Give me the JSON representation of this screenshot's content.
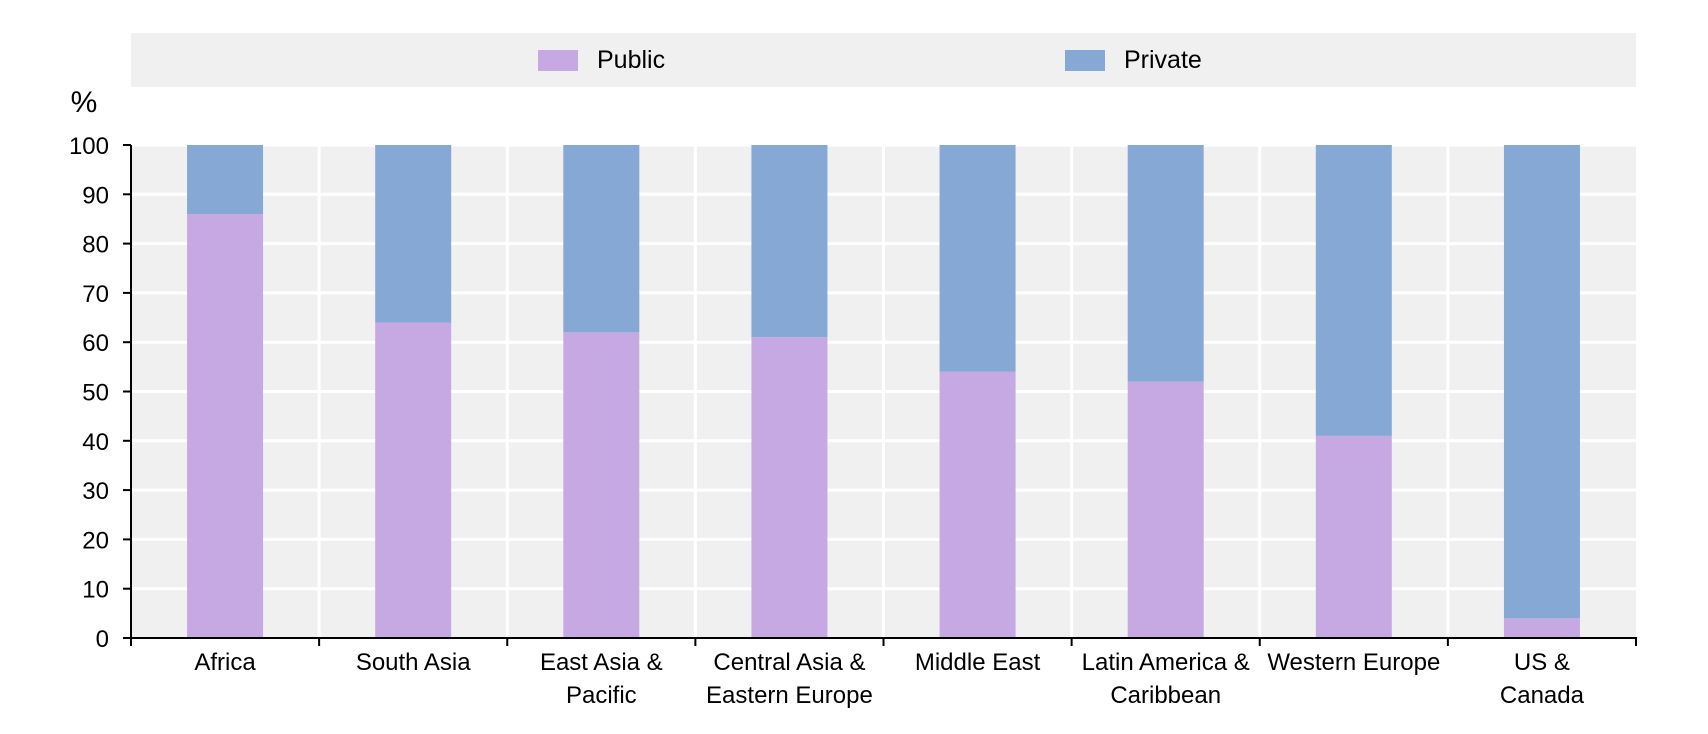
{
  "chart_data": {
    "type": "bar",
    "stacked": true,
    "ylabel": "%",
    "ylim": [
      0,
      100
    ],
    "yticks": [
      0,
      10,
      20,
      30,
      40,
      50,
      60,
      70,
      80,
      90,
      100
    ],
    "grid": true,
    "legend_placement": "top",
    "categories": [
      [
        "Africa"
      ],
      [
        "South Asia"
      ],
      [
        "East Asia &",
        "Pacific"
      ],
      [
        "Central Asia &",
        "Eastern Europe"
      ],
      [
        "Middle East"
      ],
      [
        "Latin America &",
        "Caribbean"
      ],
      [
        "Western Europe"
      ],
      [
        "US &",
        "Canada"
      ]
    ],
    "series": [
      {
        "name": "Public",
        "color": "#c6a9e2",
        "values": [
          86,
          64,
          62,
          61,
          54,
          52,
          41,
          4
        ]
      },
      {
        "name": "Private",
        "color": "#86a8d5",
        "values": [
          14,
          36,
          38,
          39,
          46,
          48,
          59,
          96
        ]
      }
    ]
  }
}
